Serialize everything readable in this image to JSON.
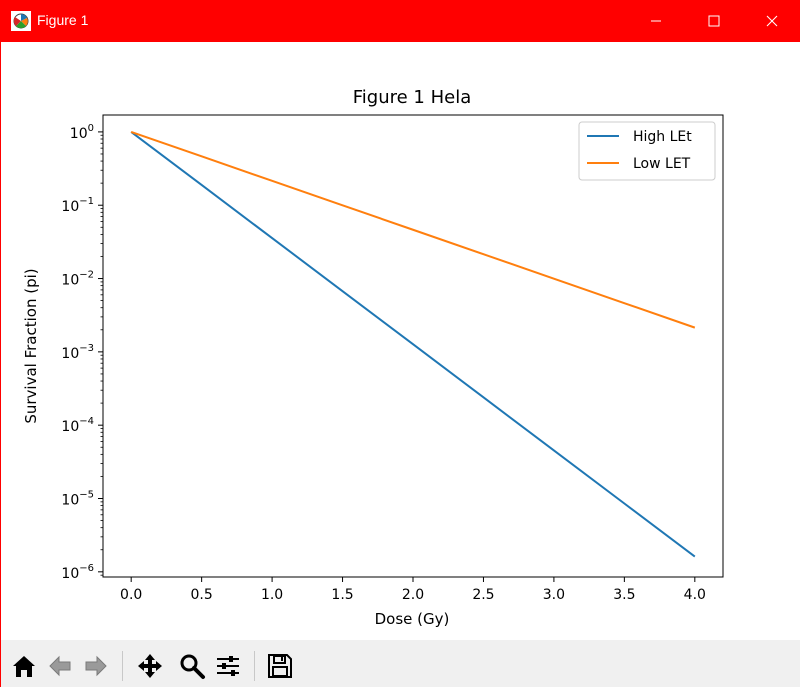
{
  "window": {
    "title": "Figure 1",
    "titlebar_color": "#ff0000"
  },
  "toolbar": {
    "buttons": [
      "home-icon",
      "back-icon",
      "forward-icon",
      "pan-icon",
      "zoom-icon",
      "configure-subplots-icon",
      "save-icon"
    ]
  },
  "chart_data": {
    "type": "line",
    "title": "Figure 1 Hela",
    "xlabel": "Dose (Gy)",
    "ylabel": "Survival Fraction (pi)",
    "xlim": [
      -0.2,
      4.2
    ],
    "ylim": [
      8.5e-07,
      1.7
    ],
    "yscale": "log",
    "grid": false,
    "legend_position": "upper right",
    "x_ticks": [
      0.0,
      0.5,
      1.0,
      1.5,
      2.0,
      2.5,
      3.0,
      3.5,
      4.0
    ],
    "x_tick_labels": [
      "0.0",
      "0.5",
      "1.0",
      "1.5",
      "2.0",
      "2.5",
      "3.0",
      "3.5",
      "4.0"
    ],
    "y_ticks": [
      1e-06,
      1e-05,
      0.0001,
      0.001,
      0.01,
      0.1,
      1
    ],
    "y_tick_labels": [
      {
        "base": "10",
        "exp": "−6"
      },
      {
        "base": "10",
        "exp": "−5"
      },
      {
        "base": "10",
        "exp": "−4"
      },
      {
        "base": "10",
        "exp": "−3"
      },
      {
        "base": "10",
        "exp": "−2"
      },
      {
        "base": "10",
        "exp": "−1"
      },
      {
        "base": "10",
        "exp": "0"
      }
    ],
    "series": [
      {
        "name": "High LEt",
        "color": "#1f77b4",
        "x": [
          0.0,
          0.5,
          1.0,
          1.5,
          2.0,
          2.5,
          3.0,
          3.5,
          4.0
        ],
        "y": [
          1.0,
          0.1888,
          0.03564,
          0.006729,
          0.001271,
          0.0002398,
          4.528e-05,
          8.549e-06,
          1.614e-06
        ]
      },
      {
        "name": "Low LET",
        "color": "#ff7f0e",
        "x": [
          0.0,
          0.5,
          1.0,
          1.5,
          2.0,
          2.5,
          3.0,
          3.5,
          4.0
        ],
        "y": [
          1.0,
          0.4638,
          0.2151,
          0.09978,
          0.04628,
          0.02146,
          0.009955,
          0.004617,
          0.002141
        ]
      }
    ]
  }
}
